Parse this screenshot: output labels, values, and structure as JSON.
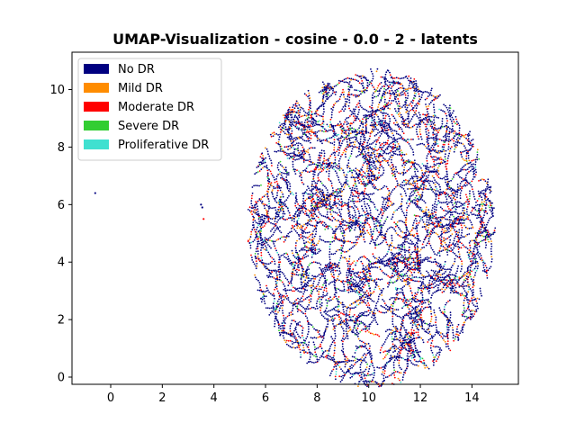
{
  "chart_data": {
    "type": "scatter",
    "title": "UMAP-Visualization - cosine - 0.0 - 2 - latents",
    "xlabel": "",
    "ylabel": "",
    "xlim": [
      -1.5,
      15.8
    ],
    "ylim": [
      -0.25,
      11.3
    ],
    "x_ticks": [
      0,
      2,
      4,
      6,
      8,
      10,
      12,
      14
    ],
    "y_ticks": [
      0,
      2,
      4,
      6,
      8,
      10
    ],
    "grid": false,
    "legend_position": "top-left",
    "series": [
      {
        "name": "No DR",
        "color": "#000080",
        "share": 0.72
      },
      {
        "name": "Mild DR",
        "color": "#ff8c00",
        "share": 0.08
      },
      {
        "name": "Moderate DR",
        "color": "#ff0000",
        "share": 0.14
      },
      {
        "name": "Severe DR",
        "color": "#32cd32",
        "share": 0.03
      },
      {
        "name": "Proliferative DR",
        "color": "#40e0d0",
        "share": 0.03
      }
    ],
    "cluster": {
      "center": [
        10.1,
        5.2
      ],
      "radius_x": 4.8,
      "radius_y": 5.55,
      "approx_points": 9000
    },
    "outlier_points": [
      {
        "x": -0.6,
        "y": 6.4,
        "series": "No DR"
      },
      {
        "x": 3.5,
        "y": 6.0,
        "series": "No DR"
      },
      {
        "x": 3.55,
        "y": 5.9,
        "series": "No DR"
      },
      {
        "x": 3.6,
        "y": 5.5,
        "series": "Moderate DR"
      }
    ]
  }
}
